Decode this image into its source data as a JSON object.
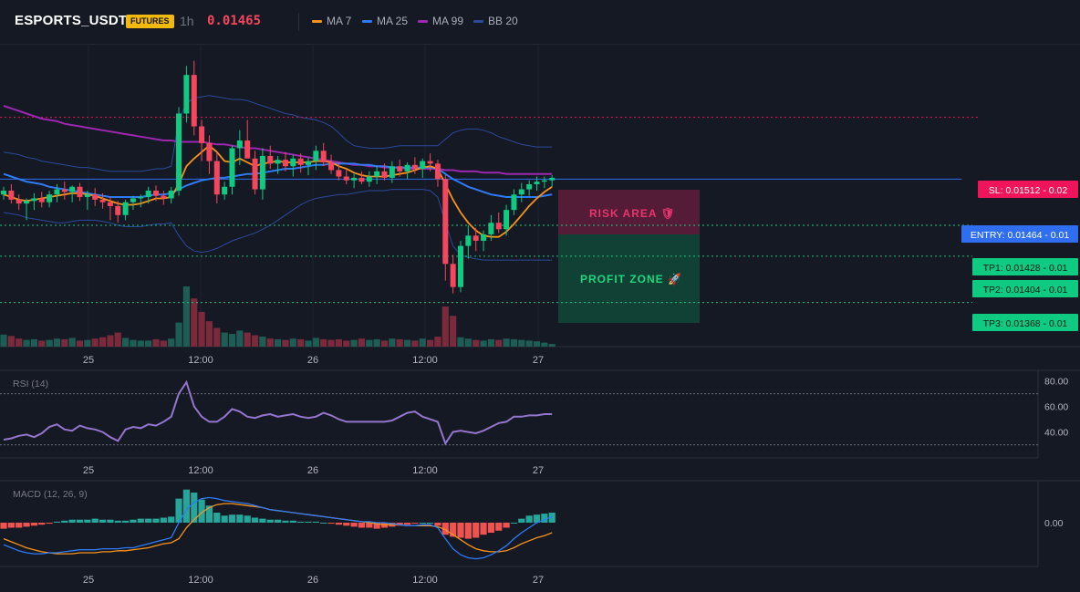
{
  "header": {
    "symbol": "ESPORTS_USDT",
    "badge": "FUTURES",
    "interval": "1h",
    "price": "0.01465",
    "legend": [
      {
        "label": "MA 7",
        "color": "#f7931a"
      },
      {
        "label": "MA 25",
        "color": "#2f7bf5"
      },
      {
        "label": "MA 99",
        "color": "#9c27b0"
      },
      {
        "label": "BB 20",
        "color": "#2a4a9a"
      }
    ]
  },
  "trade": {
    "sl_label": "SL: 0.01512 - 0.02",
    "entry_label": "ENTRY: 0.01464 - 0.01",
    "tp1_label": "TP1: 0.01428 - 0.01",
    "tp2_label": "TP2: 0.01404 - 0.01",
    "tp3_label": "TP3: 0.01368 - 0.01",
    "risk_label": "RISK AREA 🛡",
    "profit_label": "PROFIT ZONE 🚀",
    "sl": 0.01512,
    "entry": 0.01464,
    "tp1": 0.01428,
    "tp2": 0.01404,
    "tp3": 0.01368
  },
  "x_axis_labels": [
    "25",
    "12:00",
    "26",
    "12:00",
    "27"
  ],
  "rsi": {
    "title": "RSI (14)",
    "ticks": [
      "80.00",
      "60.00",
      "40.00"
    ],
    "overbought": 70,
    "oversold": 30,
    "ylim": [
      24,
      84
    ]
  },
  "macd": {
    "title": "MACD (12, 26, 9)",
    "ticks": [
      "0.00"
    ]
  },
  "colors": {
    "up": "#0ecb81",
    "down": "#f6465d",
    "up_vol": "#1e5d55",
    "down_vol": "#7a2a3a",
    "ma7": "#f7931a",
    "ma25": "#2f7bf5",
    "ma99": "#9c27b0",
    "bb": "#2a4a9a",
    "rsi": "#9575cd",
    "macd": "#2f7bf5",
    "signal": "#f7931a",
    "hist_up": "#26a69a",
    "hist_down": "#ef5350"
  },
  "chart_data": [
    {
      "type": "candlestick",
      "ylim": [
        0.01345,
        0.01565
      ],
      "ohlc": [
        [
          0.01452,
          0.01458,
          0.01448,
          0.01455
        ],
        [
          0.01455,
          0.0146,
          0.01445,
          0.01448
        ],
        [
          0.01448,
          0.01452,
          0.0144,
          0.01445
        ],
        [
          0.01445,
          0.01449,
          0.01432,
          0.01447
        ],
        [
          0.01447,
          0.01453,
          0.0144,
          0.01449
        ],
        [
          0.01449,
          0.01454,
          0.01442,
          0.01446
        ],
        [
          0.01446,
          0.01455,
          0.01442,
          0.01452
        ],
        [
          0.01452,
          0.0146,
          0.01446,
          0.01456
        ],
        [
          0.01456,
          0.01462,
          0.01448,
          0.01454
        ],
        [
          0.01454,
          0.01459,
          0.01446,
          0.01458
        ],
        [
          0.01458,
          0.01461,
          0.01447,
          0.0145
        ],
        [
          0.0145,
          0.01455,
          0.0144,
          0.01452
        ],
        [
          0.01452,
          0.01457,
          0.01443,
          0.01448
        ],
        [
          0.01448,
          0.01453,
          0.01441,
          0.01446
        ],
        [
          0.01446,
          0.0145,
          0.01432,
          0.01443
        ],
        [
          0.01443,
          0.01447,
          0.0143,
          0.01436
        ],
        [
          0.01436,
          0.01448,
          0.01432,
          0.01446
        ],
        [
          0.01446,
          0.01451,
          0.0144,
          0.01449
        ],
        [
          0.01449,
          0.01452,
          0.01442,
          0.0145
        ],
        [
          0.0145,
          0.01458,
          0.01445,
          0.01455
        ],
        [
          0.01455,
          0.01459,
          0.01447,
          0.01451
        ],
        [
          0.01451,
          0.01455,
          0.01444,
          0.01449
        ],
        [
          0.01449,
          0.01458,
          0.01445,
          0.01455
        ],
        [
          0.01455,
          0.0152,
          0.01451,
          0.01515
        ],
        [
          0.01515,
          0.01552,
          0.01508,
          0.01545
        ],
        [
          0.01545,
          0.01556,
          0.01498,
          0.01505
        ],
        [
          0.01505,
          0.0151,
          0.01478,
          0.01492
        ],
        [
          0.01492,
          0.01498,
          0.01468,
          0.01478
        ],
        [
          0.01478,
          0.01485,
          0.01445,
          0.01452
        ],
        [
          0.01452,
          0.01462,
          0.01448,
          0.01458
        ],
        [
          0.01458,
          0.0149,
          0.01452,
          0.01488
        ],
        [
          0.01488,
          0.01502,
          0.01475,
          0.01494
        ],
        [
          0.01494,
          0.0151,
          0.01482,
          0.0148
        ],
        [
          0.0148,
          0.01486,
          0.01452,
          0.01456
        ],
        [
          0.01456,
          0.01488,
          0.01448,
          0.01482
        ],
        [
          0.01482,
          0.0149,
          0.01472,
          0.01476
        ],
        [
          0.01476,
          0.01482,
          0.01468,
          0.01479
        ],
        [
          0.01479,
          0.01485,
          0.0147,
          0.01474
        ],
        [
          0.01474,
          0.01483,
          0.01466,
          0.0148
        ],
        [
          0.0148,
          0.01484,
          0.01469,
          0.01475
        ],
        [
          0.01475,
          0.01481,
          0.01467,
          0.01478
        ],
        [
          0.01478,
          0.0149,
          0.01471,
          0.01486
        ],
        [
          0.01486,
          0.01492,
          0.01474,
          0.01477
        ],
        [
          0.01477,
          0.01483,
          0.01468,
          0.01471
        ],
        [
          0.01471,
          0.01477,
          0.01463,
          0.01466
        ],
        [
          0.01466,
          0.01472,
          0.0146,
          0.01463
        ],
        [
          0.01463,
          0.01468,
          0.01457,
          0.01465
        ],
        [
          0.01465,
          0.0147,
          0.0146,
          0.01462
        ],
        [
          0.01462,
          0.0147,
          0.01458,
          0.01466
        ],
        [
          0.01466,
          0.01474,
          0.0146,
          0.0147
        ],
        [
          0.0147,
          0.01476,
          0.01463,
          0.01465
        ],
        [
          0.01465,
          0.01478,
          0.01461,
          0.01474
        ],
        [
          0.01474,
          0.01479,
          0.01466,
          0.0147
        ],
        [
          0.0147,
          0.01477,
          0.01464,
          0.01475
        ],
        [
          0.01475,
          0.01481,
          0.01468,
          0.01472
        ],
        [
          0.01472,
          0.0148,
          0.01465,
          0.01478
        ],
        [
          0.01478,
          0.01484,
          0.0147,
          0.01476
        ],
        [
          0.01476,
          0.01479,
          0.01458,
          0.01464
        ],
        [
          0.01464,
          0.01467,
          0.01385,
          0.01398
        ],
        [
          0.01398,
          0.01405,
          0.01375,
          0.0138
        ],
        [
          0.0138,
          0.01416,
          0.01376,
          0.01412
        ],
        [
          0.01412,
          0.01428,
          0.01402,
          0.0142
        ],
        [
          0.0142,
          0.01426,
          0.01408,
          0.01416
        ],
        [
          0.01416,
          0.01424,
          0.01408,
          0.01421
        ],
        [
          0.01421,
          0.01436,
          0.01416,
          0.0143
        ],
        [
          0.0143,
          0.01438,
          0.01422,
          0.01425
        ],
        [
          0.01425,
          0.01444,
          0.0142,
          0.0144
        ],
        [
          0.0144,
          0.01456,
          0.01436,
          0.01452
        ],
        [
          0.01452,
          0.01461,
          0.01446,
          0.01456
        ],
        [
          0.01456,
          0.01463,
          0.01451,
          0.0146
        ],
        [
          0.0146,
          0.01466,
          0.01455,
          0.01462
        ],
        [
          0.01462,
          0.01466,
          0.01457,
          0.01463
        ],
        [
          0.01463,
          0.01467,
          0.01458,
          0.01465
        ]
      ],
      "volume": [
        18,
        16,
        12,
        10,
        11,
        9,
        10,
        12,
        11,
        13,
        9,
        10,
        12,
        14,
        17,
        21,
        13,
        10,
        9,
        9,
        11,
        9,
        12,
        36,
        90,
        72,
        52,
        38,
        28,
        21,
        19,
        24,
        21,
        17,
        15,
        12,
        11,
        10,
        12,
        11,
        9,
        13,
        11,
        10,
        11,
        9,
        10,
        12,
        10,
        11,
        9,
        12,
        11,
        10,
        9,
        12,
        10,
        15,
        60,
        46,
        14,
        12,
        10,
        9,
        11,
        10,
        12,
        11,
        10,
        9,
        8,
        6,
        4
      ],
      "ma7": [
        0.01452,
        0.0145,
        0.01448,
        0.01447,
        0.01448,
        0.01449,
        0.0145,
        0.01451,
        0.01452,
        0.01453,
        0.01453,
        0.01452,
        0.01451,
        0.01449,
        0.01447,
        0.01445,
        0.01444,
        0.01444,
        0.01445,
        0.01447,
        0.01449,
        0.01449,
        0.0145,
        0.0146,
        0.01474,
        0.0148,
        0.01485,
        0.0149,
        0.01485,
        0.01478,
        0.01477,
        0.0148,
        0.01477,
        0.01474,
        0.01476,
        0.01477,
        0.01478,
        0.01477,
        0.01477,
        0.01477,
        0.01477,
        0.01478,
        0.01478,
        0.01477,
        0.01474,
        0.01472,
        0.01469,
        0.01467,
        0.01466,
        0.01466,
        0.01466,
        0.01467,
        0.01468,
        0.01469,
        0.01471,
        0.01473,
        0.01474,
        0.01472,
        0.0146,
        0.01448,
        0.01438,
        0.0143,
        0.01424,
        0.0142,
        0.01419,
        0.01419,
        0.01423,
        0.01429,
        0.01436,
        0.01443,
        0.01449,
        0.01454,
        0.01458
      ],
      "ma25": [
        0.01468,
        0.01466,
        0.01464,
        0.01462,
        0.01461,
        0.0146,
        0.01458,
        0.01457,
        0.01456,
        0.01455,
        0.01454,
        0.01453,
        0.01452,
        0.01451,
        0.0145,
        0.0145,
        0.0145,
        0.0145,
        0.0145,
        0.01451,
        0.01452,
        0.01452,
        0.01453,
        0.01456,
        0.01459,
        0.01461,
        0.01463,
        0.01464,
        0.01465,
        0.01465,
        0.01466,
        0.01467,
        0.01468,
        0.01468,
        0.01469,
        0.0147,
        0.01471,
        0.01472,
        0.01472,
        0.01473,
        0.01474,
        0.01475,
        0.01475,
        0.01476,
        0.01476,
        0.01476,
        0.01476,
        0.01475,
        0.01475,
        0.01474,
        0.01474,
        0.01473,
        0.01473,
        0.01473,
        0.01473,
        0.01473,
        0.01473,
        0.01472,
        0.01468,
        0.01464,
        0.01461,
        0.01458,
        0.01456,
        0.01454,
        0.01452,
        0.01451,
        0.0145,
        0.0145,
        0.0145,
        0.0145,
        0.0145,
        0.01451,
        0.01452
      ],
      "ma99": [
        0.01521,
        0.01519,
        0.01517,
        0.01515,
        0.01513,
        0.01511,
        0.0151,
        0.01509,
        0.01507,
        0.01506,
        0.01505,
        0.01504,
        0.01503,
        0.01502,
        0.01501,
        0.015,
        0.01499,
        0.01498,
        0.01497,
        0.01496,
        0.01495,
        0.01494,
        0.01494,
        0.01493,
        0.01493,
        0.01493,
        0.01493,
        0.01492,
        0.01491,
        0.01491,
        0.0149,
        0.01489,
        0.01488,
        0.01488,
        0.01487,
        0.01486,
        0.01485,
        0.01484,
        0.01483,
        0.01482,
        0.01481,
        0.0148,
        0.01479,
        0.01478,
        0.01477,
        0.01476,
        0.01475,
        0.01475,
        0.01474,
        0.01474,
        0.01473,
        0.01473,
        0.01473,
        0.01472,
        0.01472,
        0.01472,
        0.01472,
        0.01472,
        0.01471,
        0.01471,
        0.0147,
        0.0147,
        0.0147,
        0.01469,
        0.01469,
        0.01469,
        0.01468,
        0.01468,
        0.01468,
        0.01468,
        0.01468,
        0.01468,
        0.01468
      ],
      "bb_upper": [
        0.01485,
        0.01484,
        0.01483,
        0.01481,
        0.0148,
        0.01478,
        0.01477,
        0.01476,
        0.01475,
        0.01474,
        0.01473,
        0.01473,
        0.01472,
        0.01471,
        0.0147,
        0.0147,
        0.0147,
        0.0147,
        0.0147,
        0.01471,
        0.01472,
        0.01472,
        0.01474,
        0.0151,
        0.01523,
        0.01527,
        0.01528,
        0.01529,
        0.01528,
        0.01527,
        0.01526,
        0.01526,
        0.01525,
        0.01523,
        0.01521,
        0.01519,
        0.01517,
        0.01515,
        0.01514,
        0.01512,
        0.01511,
        0.0151,
        0.01508,
        0.01505,
        0.015,
        0.01494,
        0.0149,
        0.01489,
        0.01488,
        0.01488,
        0.01488,
        0.01489,
        0.0149,
        0.0149,
        0.0149,
        0.0149,
        0.0149,
        0.0149,
        0.01495,
        0.015,
        0.01502,
        0.01503,
        0.01503,
        0.01502,
        0.015,
        0.01497,
        0.01495,
        0.01493,
        0.01491,
        0.0149,
        0.01489,
        0.01489,
        0.01489
      ],
      "bb_lower": [
        0.01438,
        0.01437,
        0.01436,
        0.01434,
        0.01433,
        0.01432,
        0.01431,
        0.0143,
        0.0143,
        0.01431,
        0.01432,
        0.01432,
        0.01432,
        0.01431,
        0.0143,
        0.01428,
        0.01427,
        0.01427,
        0.01427,
        0.01428,
        0.01429,
        0.01429,
        0.0143,
        0.0142,
        0.01412,
        0.01408,
        0.01407,
        0.01408,
        0.0141,
        0.01413,
        0.01416,
        0.01418,
        0.0142,
        0.01422,
        0.01425,
        0.01428,
        0.01432,
        0.01436,
        0.0144,
        0.01444,
        0.01447,
        0.01449,
        0.0145,
        0.01451,
        0.01452,
        0.01452,
        0.01453,
        0.01454,
        0.01455,
        0.01455,
        0.01455,
        0.01456,
        0.01456,
        0.01456,
        0.01456,
        0.01456,
        0.01455,
        0.0145,
        0.0143,
        0.01412,
        0.01405,
        0.01403,
        0.01402,
        0.01401,
        0.01401,
        0.01401,
        0.01401,
        0.01401,
        0.01401,
        0.01401,
        0.01401,
        0.01401,
        0.01401
      ]
    },
    {
      "type": "line",
      "name": "RSI (14)",
      "values": [
        34,
        35,
        37,
        38,
        36,
        39,
        44,
        46,
        42,
        41,
        45,
        43,
        42,
        40,
        36,
        33,
        42,
        44,
        43,
        46,
        45,
        48,
        52,
        70,
        79,
        60,
        52,
        48,
        48,
        52,
        58,
        56,
        52,
        51,
        53,
        54,
        52,
        53,
        54,
        52,
        51,
        52,
        55,
        53,
        50,
        48,
        48,
        48,
        48,
        48,
        48,
        49,
        52,
        55,
        56,
        52,
        50,
        48,
        31,
        40,
        41,
        40,
        39,
        41,
        44,
        47,
        48,
        52,
        52,
        53,
        53,
        54,
        54
      ]
    },
    {
      "type": "bar",
      "name": "MACD (12, 26, 9)",
      "histogram": [
        -0.6,
        -0.5,
        -0.5,
        -0.4,
        -0.3,
        -0.2,
        -0.1,
        0.1,
        0.2,
        0.3,
        0.3,
        0.3,
        0.4,
        0.3,
        0.3,
        0.2,
        0.2,
        0.3,
        0.4,
        0.4,
        0.4,
        0.5,
        0.6,
        2.4,
        3.3,
        3.0,
        2.3,
        1.7,
        1.0,
        0.7,
        0.8,
        0.8,
        0.7,
        0.5,
        0.4,
        0.3,
        0.3,
        0.2,
        0.2,
        0.1,
        0.1,
        0.1,
        0.0,
        -0.1,
        -0.2,
        -0.3,
        -0.4,
        -0.5,
        -0.5,
        -0.6,
        -0.5,
        -0.4,
        -0.3,
        -0.2,
        -0.1,
        0.0,
        0.0,
        -0.3,
        -1.2,
        -1.4,
        -1.5,
        -1.6,
        -1.5,
        -1.2,
        -1.0,
        -0.8,
        -0.5,
        0.0,
        0.4,
        0.7,
        0.8,
        0.9,
        1.0
      ],
      "macd": [
        -2.2,
        -2.5,
        -2.8,
        -3.0,
        -3.1,
        -3.1,
        -3.0,
        -3.0,
        -2.9,
        -2.8,
        -2.7,
        -2.7,
        -2.7,
        -2.6,
        -2.6,
        -2.6,
        -2.5,
        -2.5,
        -2.3,
        -2.1,
        -1.9,
        -1.7,
        -1.5,
        0.0,
        1.3,
        2.0,
        2.4,
        2.5,
        2.4,
        2.2,
        2.1,
        2.0,
        1.9,
        1.7,
        1.5,
        1.3,
        1.2,
        1.1,
        1.0,
        0.9,
        0.8,
        0.7,
        0.6,
        0.5,
        0.4,
        0.3,
        0.2,
        0.1,
        0.1,
        0.0,
        0.0,
        -0.1,
        -0.2,
        -0.3,
        -0.3,
        -0.2,
        -0.2,
        -0.5,
        -1.6,
        -2.6,
        -3.2,
        -3.5,
        -3.6,
        -3.5,
        -3.2,
        -2.8,
        -2.3,
        -1.6,
        -1.0,
        -0.5,
        0.0,
        0.3,
        0.6
      ],
      "signal": [
        -1.6,
        -1.9,
        -2.2,
        -2.5,
        -2.7,
        -2.9,
        -3.0,
        -3.1,
        -3.1,
        -3.1,
        -3.0,
        -3.0,
        -3.0,
        -2.9,
        -2.9,
        -2.8,
        -2.8,
        -2.7,
        -2.6,
        -2.5,
        -2.3,
        -2.1,
        -2.0,
        -1.6,
        -0.5,
        0.3,
        1.0,
        1.5,
        1.8,
        1.9,
        1.9,
        1.8,
        1.7,
        1.6,
        1.5,
        1.3,
        1.2,
        1.1,
        1.0,
        0.9,
        0.8,
        0.7,
        0.6,
        0.5,
        0.4,
        0.3,
        0.2,
        0.1,
        0.0,
        -0.1,
        -0.2,
        -0.2,
        -0.2,
        -0.3,
        -0.3,
        -0.3,
        -0.3,
        -0.4,
        -0.7,
        -1.2,
        -1.7,
        -2.2,
        -2.6,
        -2.8,
        -2.9,
        -2.9,
        -2.8,
        -2.5,
        -2.1,
        -1.8,
        -1.5,
        -1.3,
        -1.0
      ]
    }
  ]
}
